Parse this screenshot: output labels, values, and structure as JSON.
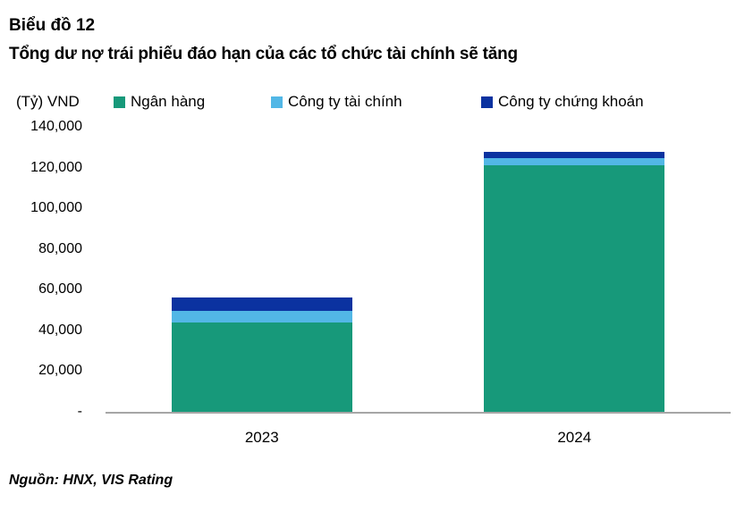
{
  "header": {
    "chart_label": "Biểu đồ 12",
    "title": "Tổng dư nợ trái phiếu đáo hạn của các tổ chức tài chính sẽ tăng"
  },
  "source": "Nguồn: HNX, VIS Rating",
  "colors": {
    "bank": "#17997A",
    "finance_company": "#52B7E6",
    "securities_company": "#0B32A0",
    "axis_line": "#A6A6A6",
    "text": "#000000"
  },
  "chart_data": {
    "type": "bar",
    "stacked": true,
    "title": "Tổng dư nợ trái phiếu đáo hạn của các tổ chức tài chính sẽ tăng",
    "xlabel": "",
    "ylabel": "(Tỷ) VND",
    "categories": [
      "2023",
      "2024"
    ],
    "series": [
      {
        "name": "Ngân hàng",
        "color": "#17997A",
        "values": [
          44000,
          121000
        ]
      },
      {
        "name": "Công ty tài chính",
        "color": "#52B7E6",
        "values": [
          5400,
          3500
        ]
      },
      {
        "name": "Công ty chứng khoán",
        "color": "#0B32A0",
        "values": [
          6800,
          3000
        ]
      }
    ],
    "totals": [
      56200,
      127500
    ],
    "ylim": [
      0,
      140000
    ],
    "ytick_step": 20000,
    "ytick_labels": [
      "-",
      "20,000",
      "40,000",
      "60,000",
      "80,000",
      "100,000",
      "120,000",
      "140,000"
    ],
    "legend_position": "top",
    "grid": false
  }
}
